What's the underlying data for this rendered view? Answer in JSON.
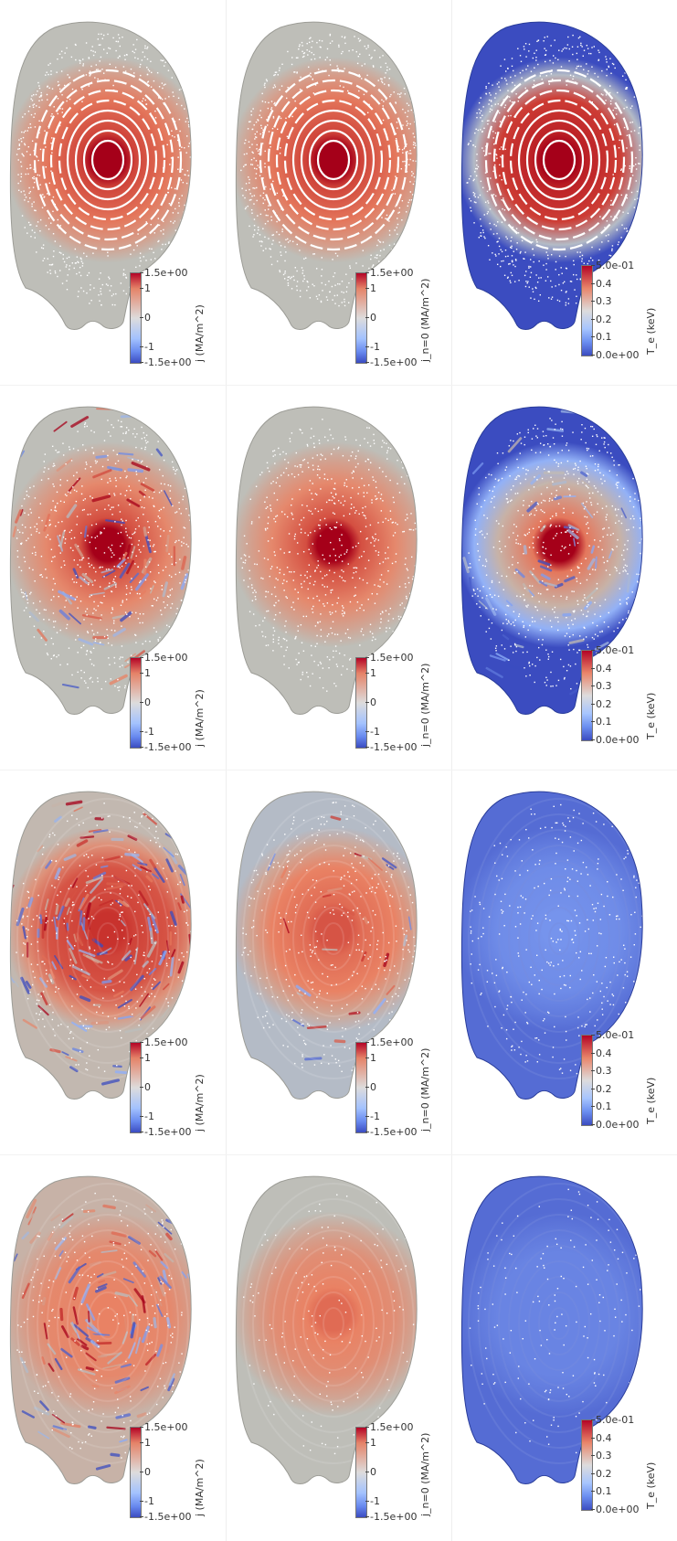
{
  "panels": [
    {
      "row": 0,
      "col": 0,
      "type": "j",
      "core": 1.0,
      "mid": 0.55,
      "edge": 0.0,
      "noise": 0.05,
      "rings": true,
      "dots": 0.7
    },
    {
      "row": 0,
      "col": 1,
      "type": "j0",
      "core": 1.0,
      "mid": 0.55,
      "edge": 0.0,
      "noise": 0.05,
      "rings": true,
      "dots": 0.7
    },
    {
      "row": 0,
      "col": 2,
      "type": "te",
      "core": 1.0,
      "mid": 0.9,
      "edge": 0.0,
      "noise": 0.05,
      "rings": true,
      "dots": 0.7
    },
    {
      "row": 1,
      "col": 0,
      "type": "j",
      "core": 1.0,
      "mid": 0.45,
      "edge": 0.0,
      "noise": 0.35,
      "rings": false,
      "dots": 0.8
    },
    {
      "row": 1,
      "col": 1,
      "type": "j0",
      "core": 1.0,
      "mid": 0.45,
      "edge": 0.0,
      "noise": 0.08,
      "rings": false,
      "dots": 0.8
    },
    {
      "row": 1,
      "col": 2,
      "type": "te",
      "core": 1.0,
      "mid": 0.55,
      "edge": 0.0,
      "noise": 0.25,
      "rings": false,
      "dots": 0.8
    },
    {
      "row": 2,
      "col": 0,
      "type": "j",
      "core": 0.85,
      "mid": 0.7,
      "edge": 0.05,
      "noise": 0.7,
      "rings": false,
      "dots": 0.4
    },
    {
      "row": 2,
      "col": 1,
      "type": "j0",
      "core": 0.7,
      "mid": 0.5,
      "edge": -0.1,
      "noise": 0.12,
      "rings": false,
      "dots": 0.5
    },
    {
      "row": 2,
      "col": 2,
      "type": "te",
      "core": 0.18,
      "mid": 0.16,
      "edge": 0.08,
      "noise": 0.05,
      "rings": false,
      "dots": 0.4
    },
    {
      "row": 3,
      "col": 0,
      "type": "j",
      "core": 0.5,
      "mid": 0.45,
      "edge": 0.1,
      "noise": 0.6,
      "rings": false,
      "dots": 0.3
    },
    {
      "row": 3,
      "col": 1,
      "type": "j0",
      "core": 0.6,
      "mid": 0.4,
      "edge": 0.0,
      "noise": 0.1,
      "rings": false,
      "dots": 0.2
    },
    {
      "row": 3,
      "col": 2,
      "type": "te",
      "core": 0.14,
      "mid": 0.14,
      "edge": 0.08,
      "noise": 0.05,
      "rings": false,
      "dots": 0.2
    }
  ],
  "colorbars": {
    "j": {
      "label": "j (MA/m^2)",
      "ticks": [
        "1.5e+00",
        "1",
        "0",
        "-1",
        "-1.5e+00"
      ]
    },
    "j0": {
      "label": "j_n=0 (MA/m^2)",
      "ticks": [
        "1.5e+00",
        "1",
        "0",
        "-1",
        "-1.5e+00"
      ]
    },
    "te": {
      "label": "T_e (keV)",
      "ticks": [
        "5.0e-01",
        "0.4",
        "0.3",
        "0.2",
        "0.1",
        "0.0e+00"
      ]
    }
  }
}
